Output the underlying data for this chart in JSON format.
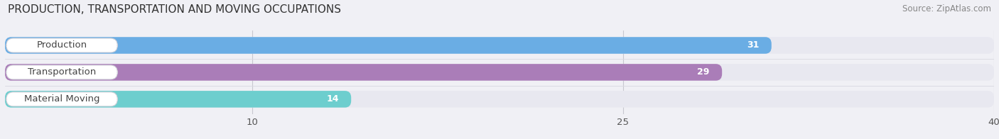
{
  "title": "PRODUCTION, TRANSPORTATION AND MOVING OCCUPATIONS",
  "source": "Source: ZipAtlas.com",
  "categories": [
    "Production",
    "Transportation",
    "Material Moving"
  ],
  "values": [
    31,
    29,
    14
  ],
  "bar_colors": [
    "#6aade4",
    "#aa7db8",
    "#6dcece"
  ],
  "bar_bg_color": "#e8e8f0",
  "label_bg_color": "#ffffff",
  "xlim": [
    0,
    40
  ],
  "xticks": [
    10,
    25,
    40
  ],
  "figsize": [
    14.06,
    1.96
  ],
  "dpi": 100,
  "title_fontsize": 11,
  "label_fontsize": 9.5,
  "value_fontsize": 9,
  "source_fontsize": 8.5,
  "background_color": "#f0f0f5"
}
